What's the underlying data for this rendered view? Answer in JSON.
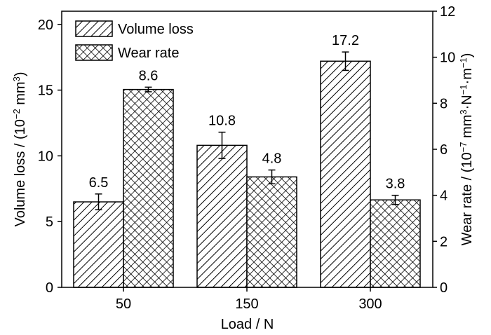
{
  "chart_data": {
    "type": "bar",
    "xlabel": "Load / N",
    "categories": [
      "50",
      "150",
      "300"
    ],
    "y_left": {
      "label_parts": [
        "Volume loss / (10",
        "−2",
        " mm",
        "3",
        ")"
      ],
      "range": [
        0,
        21
      ],
      "ticks": [
        0,
        5,
        10,
        15,
        20
      ]
    },
    "y_right": {
      "label_parts": [
        "Wear rate / (10",
        "−7",
        " mm",
        "3",
        "·N",
        "−1",
        "·m",
        "−1",
        ")"
      ],
      "range": [
        0,
        12
      ],
      "ticks": [
        0,
        2,
        4,
        6,
        8,
        10,
        12
      ]
    },
    "series": [
      {
        "name": "Volume loss",
        "axis": "left",
        "pattern": "diagonal-hatch",
        "values": [
          6.5,
          10.8,
          17.2
        ],
        "labels": [
          "6.5",
          "10.8",
          "17.2"
        ],
        "errors": [
          0.6,
          1.0,
          0.7
        ]
      },
      {
        "name": "Wear rate",
        "axis": "right",
        "pattern": "cross-hatch",
        "values": [
          8.6,
          4.8,
          3.8
        ],
        "labels": [
          "8.6",
          "4.8",
          "3.8"
        ],
        "errors": [
          0.1,
          0.3,
          0.2
        ]
      }
    ],
    "legend_position": "top-left",
    "grid": false
  }
}
